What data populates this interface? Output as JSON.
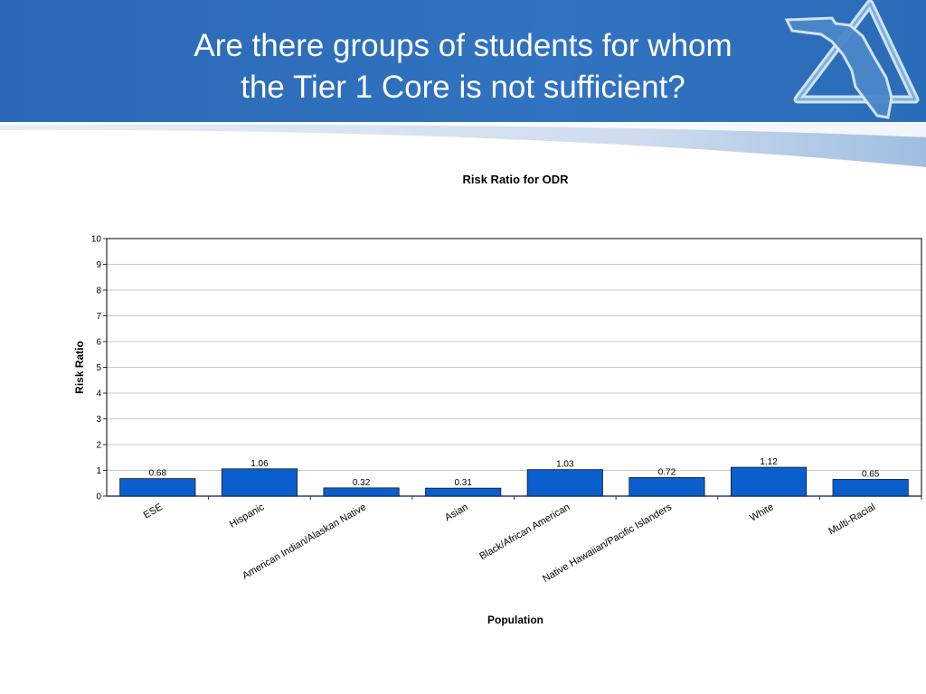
{
  "slide": {
    "title_line1": "Are there groups of students for whom",
    "title_line2": "the Tier 1 Core is not sufficient?",
    "colors": {
      "header_blue": "#2f6fba",
      "title_text": "#ffffff",
      "bar_fill": "#0a5fcc"
    },
    "logo_icon": "florida-triangle-logo-icon"
  },
  "chart_data": {
    "type": "bar",
    "title": "Risk Ratio for ODR",
    "xlabel": "Population",
    "ylabel": "Risk Ratio",
    "categories": [
      "ESE",
      "Hispanic",
      "American Indian/Alaskan Native",
      "Asian",
      "Black/African American",
      "Native Hawaiian/Pacific Islanders",
      "White",
      "Multi-Racial"
    ],
    "values": [
      0.68,
      1.06,
      0.32,
      0.31,
      1.03,
      0.72,
      1.12,
      0.65
    ],
    "value_labels": [
      "0.68",
      "1.06",
      "0.32",
      "0.31",
      "1.03",
      "0.72",
      "1.12",
      "0.65"
    ],
    "ylim": [
      0,
      10
    ],
    "yticks": [
      "0",
      "1",
      "2",
      "3",
      "4",
      "5",
      "6",
      "7",
      "8",
      "9",
      "10"
    ],
    "grid": true,
    "legend": "none"
  }
}
